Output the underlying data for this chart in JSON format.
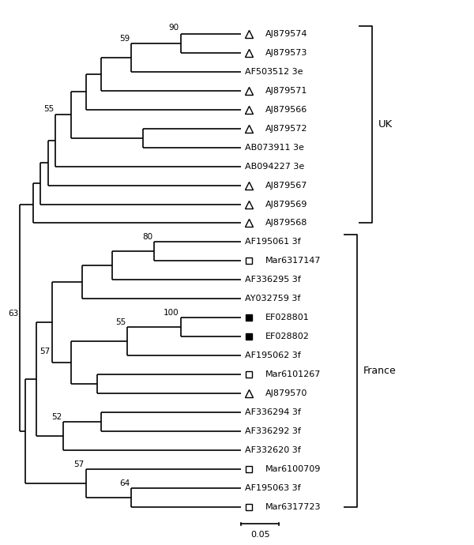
{
  "figsize": [
    6.0,
    6.9
  ],
  "dpi": 100,
  "bg_color": "#ffffff",
  "leaves": [
    {
      "name": "AJ879574",
      "y": 26,
      "marker": "triangle_open"
    },
    {
      "name": "AJ879573",
      "y": 25,
      "marker": "triangle_open"
    },
    {
      "name": "AF503512 3e",
      "y": 24,
      "marker": "none"
    },
    {
      "name": "AJ879571",
      "y": 23,
      "marker": "triangle_open"
    },
    {
      "name": "AJ879566",
      "y": 22,
      "marker": "triangle_open"
    },
    {
      "name": "AJ879572",
      "y": 21,
      "marker": "triangle_open"
    },
    {
      "name": "AB073911 3e",
      "y": 20,
      "marker": "none"
    },
    {
      "name": "AB094227 3e",
      "y": 19,
      "marker": "none"
    },
    {
      "name": "AJ879567",
      "y": 18,
      "marker": "triangle_open"
    },
    {
      "name": "AJ879569",
      "y": 17,
      "marker": "triangle_open"
    },
    {
      "name": "AJ879568",
      "y": 16,
      "marker": "triangle_open"
    },
    {
      "name": "AF195061 3f",
      "y": 15,
      "marker": "none"
    },
    {
      "name": "Mar6317147",
      "y": 14,
      "marker": "square_open"
    },
    {
      "name": "AF336295 3f",
      "y": 13,
      "marker": "none"
    },
    {
      "name": "AY032759 3f",
      "y": 12,
      "marker": "none"
    },
    {
      "name": "EF028801",
      "y": 11,
      "marker": "square_filled"
    },
    {
      "name": "EF028802",
      "y": 10,
      "marker": "square_filled"
    },
    {
      "name": "AF195062 3f",
      "y": 9,
      "marker": "none"
    },
    {
      "name": "Mar6101267",
      "y": 8,
      "marker": "square_open"
    },
    {
      "name": "AJ879570",
      "y": 7,
      "marker": "triangle_open"
    },
    {
      "name": "AF336294 3f",
      "y": 6,
      "marker": "none"
    },
    {
      "name": "AF336292 3f",
      "y": 5,
      "marker": "none"
    },
    {
      "name": "AF332620 3f",
      "y": 4,
      "marker": "none"
    },
    {
      "name": "Mar6100709",
      "y": 3,
      "marker": "square_open"
    },
    {
      "name": "AF195063 3f",
      "y": 2,
      "marker": "none"
    },
    {
      "name": "Mar6317723",
      "y": 1,
      "marker": "square_open"
    }
  ],
  "lw": 1.2,
  "font_size": 8.0,
  "marker_size": 7
}
